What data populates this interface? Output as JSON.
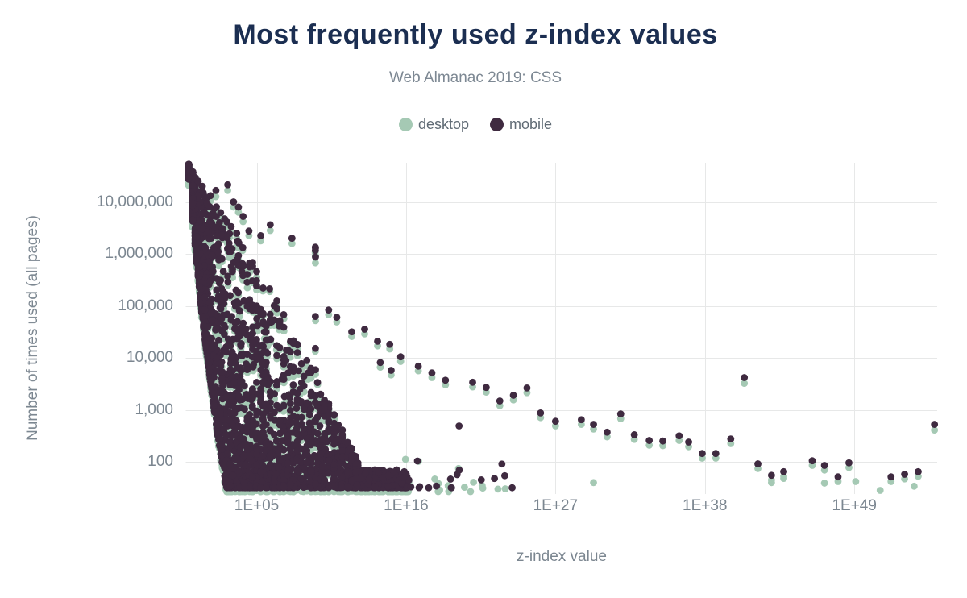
{
  "header": {
    "title": "Most frequently used z-index values",
    "subtitle": "Web Almanac 2019: CSS"
  },
  "legend": {
    "items": [
      {
        "label": "desktop",
        "color": "#a5c9b4"
      },
      {
        "label": "mobile",
        "color": "#3f2a40"
      }
    ]
  },
  "chart_data": {
    "type": "scatter",
    "title": "Most frequently used z-index values",
    "subtitle": "Web Almanac 2019: CSS",
    "xlabel": "z-index value",
    "ylabel": "Number of times used (all pages)",
    "x_scale": "log10",
    "y_scale": "log10",
    "grid": true,
    "legend_position": "top",
    "marker_radius": 4.4,
    "background": "#ffffff",
    "gridline_color": "#e7e8e8",
    "x_axis": {
      "tick_exponents": [
        5,
        16,
        27,
        38,
        49
      ],
      "tick_labels": [
        "1E+05",
        "1E+16",
        "1E+27",
        "1E+38",
        "1E+49"
      ],
      "min_exponent": -0.3,
      "max_exponent": 56.2
    },
    "y_axis": {
      "tick_values": [
        100,
        1000,
        10000,
        100000,
        1000000,
        10000000
      ],
      "tick_labels": [
        "100",
        "1,000",
        "10,000",
        "100,000",
        "1,000,000",
        "10,000,000"
      ],
      "min": 25,
      "max": 60000000
    },
    "series": [
      {
        "name": "desktop",
        "color": "#a5c9b4"
      },
      {
        "name": "mobile",
        "color": "#3f2a40"
      }
    ],
    "dense_cloud": {
      "description": "Dense triangular mass: z-index values 1 to ~1E+16, counts from ~30 up to ~5E+7 at z=1; upper envelope falls with z; solid low strip (30-100 uses) from ~1E+03 to ~1E+16; mobile dots drawn over slightly lower desktop dots.",
      "seed": 20190711,
      "n_pairs": 2600,
      "e_max": 16.2,
      "e_pow": 1.9,
      "digit_exponents": [
        0,
        0.301,
        0.477,
        0.602,
        0.699,
        0.778,
        0.845,
        0.903,
        0.954
      ],
      "snap_min_e": 4.2,
      "snap_prob": 0.78,
      "snap_exponents": [
        4.3,
        4.48,
        4.7,
        5,
        5.3,
        5.48,
        5.7,
        6,
        6.3,
        6.48,
        6.7,
        7,
        7.3,
        7.48,
        7.7,
        8,
        8.3,
        8.48,
        8.7,
        9,
        9.33,
        9.48,
        9.7,
        10,
        10.3,
        10.7,
        11,
        11.3,
        11.7,
        12,
        12.3,
        12.7,
        13,
        13.3,
        13.7,
        14,
        14.3,
        14.7,
        15,
        15.3,
        15.7,
        16
      ],
      "jitter_snapped": 0.02,
      "jitter_free": 0.1,
      "envelope_segments": [
        [
          0,
          7.72,
          -0.5
        ],
        [
          1,
          7.22,
          -0.3
        ],
        [
          3,
          6.62,
          -0.42
        ],
        [
          6,
          5.36,
          -0.52
        ],
        [
          10,
          3.28,
          -0.5
        ]
      ],
      "spike_exp": 9.33,
      "spike_width": 0.05,
      "spike_top": 6.15,
      "left_edge_points": [
        [
          0,
          7.45
        ],
        [
          1,
          4.75
        ],
        [
          2,
          2.75
        ],
        [
          2.75,
          1.5
        ]
      ],
      "min_band": 0.35,
      "count_pow": 2.1,
      "floor_mobile": 1.5,
      "floor_desktop": 1.42,
      "desktop_offset_min": 0.03,
      "desktop_offset_span": 0.1
    },
    "outlier_pairs_format": "[log10(z-index), log10(mobile uses), log10(desktop uses; optional, default mobile-0.09)]",
    "outlier_pairs": [
      [
        0,
        7.73,
        7.64
      ],
      [
        0.3,
        7.58,
        7.5
      ],
      [
        0.48,
        7.45,
        7.37
      ],
      [
        0.7,
        7.4,
        7.31
      ],
      [
        1.0,
        7.3,
        7.2
      ],
      [
        1.6,
        7.12,
        7.02
      ],
      [
        2.0,
        7.22,
        7.1
      ],
      [
        2.87,
        7.33,
        7.22
      ],
      [
        3.3,
        7.0,
        6.9
      ],
      [
        3.66,
        6.9,
        6.8
      ],
      [
        4.0,
        6.72,
        6.62
      ],
      [
        4.43,
        6.44,
        6.35
      ],
      [
        5.3,
        6.35,
        6.25
      ],
      [
        6.0,
        6.56,
        6.45
      ],
      [
        7.6,
        6.3,
        6.2
      ],
      [
        9.33,
        6.11,
        5.96
      ],
      [
        10.3,
        4.92
      ],
      [
        10.9,
        4.78
      ],
      [
        12.0,
        4.5
      ],
      [
        12.95,
        4.55
      ],
      [
        13.9,
        4.32
      ],
      [
        14.1,
        3.91
      ],
      [
        14.8,
        4.26
      ],
      [
        14.9,
        3.76
      ],
      [
        15.6,
        4.02
      ],
      [
        16.9,
        3.84
      ],
      [
        17.9,
        3.71
      ],
      [
        18.9,
        3.57
      ],
      [
        20.9,
        3.53
      ],
      [
        21.9,
        3.43
      ],
      [
        22.9,
        3.17
      ],
      [
        23.9,
        3.28
      ],
      [
        24.9,
        3.42
      ],
      [
        25.9,
        2.94
      ],
      [
        27.0,
        2.78
      ],
      [
        28.9,
        2.81
      ],
      [
        29.8,
        2.72
      ],
      [
        30.8,
        2.57
      ],
      [
        31.8,
        2.92
      ],
      [
        32.8,
        2.52
      ],
      [
        33.9,
        2.41
      ],
      [
        34.9,
        2.4
      ],
      [
        36.1,
        2.5
      ],
      [
        36.8,
        2.38
      ],
      [
        37.8,
        2.16
      ],
      [
        38.8,
        2.16
      ],
      [
        39.9,
        2.44
      ],
      [
        40.9,
        3.62,
        3.51
      ],
      [
        41.9,
        1.96
      ],
      [
        42.9,
        1.74
      ],
      [
        43.8,
        1.81
      ],
      [
        45.9,
        2.02
      ],
      [
        46.8,
        1.93
      ],
      [
        47.8,
        1.71
      ],
      [
        48.6,
        1.98
      ],
      [
        51.7,
        1.71
      ],
      [
        52.7,
        1.76
      ],
      [
        53.7,
        1.81
      ],
      [
        54.9,
        2.72,
        2.61
      ]
    ],
    "mobile_singles": [
      [
        19.9,
        2.69
      ]
    ],
    "desktop_singles": [
      [
        19.1,
        1.54
      ],
      [
        20.3,
        1.51
      ],
      [
        21.6,
        1.54
      ],
      [
        23.3,
        1.48
      ],
      [
        29.8,
        1.6
      ],
      [
        42.9,
        1.6
      ],
      [
        43.8,
        1.68
      ],
      [
        46.8,
        1.59
      ],
      [
        49.1,
        1.62
      ],
      [
        50.9,
        1.45
      ],
      [
        53.4,
        1.53
      ]
    ],
    "sparse_low_strip": {
      "description": "scattered lowest-count dots between ~1E+16 and ~1E+24",
      "seed": 77,
      "n_mobile": 16,
      "n_desktop": 12,
      "e_min": 15.9,
      "e_max": 24.0,
      "base_log_count": 1.45,
      "span_log_count": 0.8,
      "pow": 2.3
    }
  }
}
